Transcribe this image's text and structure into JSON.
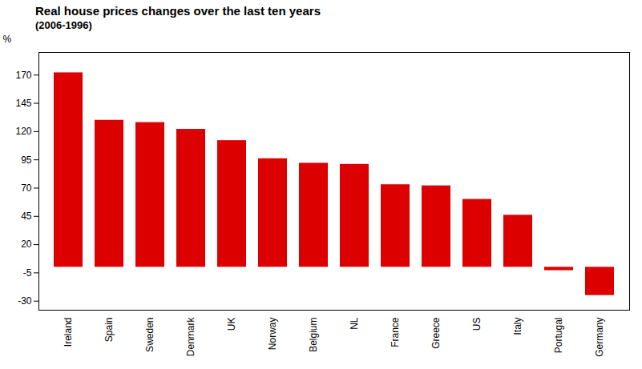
{
  "chart_data": {
    "type": "bar",
    "title": "Real house prices changes over the last ten years",
    "subtitle": "(2006-1996)",
    "ylabel": "%",
    "categories": [
      "Ireland",
      "Spain",
      "Sweden",
      "Denmark",
      "UK",
      "Norway",
      "Belgium",
      "NL",
      "France",
      "Greece",
      "US",
      "Italy",
      "Portugal",
      "Germany"
    ],
    "values": [
      172,
      130,
      128,
      122,
      112,
      96,
      92,
      91,
      73,
      72,
      60,
      46,
      -3,
      -25
    ],
    "color": "#DD0000",
    "ylim": [
      -38,
      190
    ],
    "yticks": [
      -30,
      -5,
      20,
      45,
      70,
      95,
      120,
      145,
      170
    ],
    "grid": false
  }
}
